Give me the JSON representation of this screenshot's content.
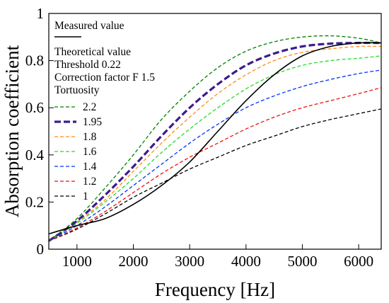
{
  "chart_data": {
    "type": "line",
    "xlabel": "Frequency [Hz]",
    "ylabel": "Absorption coefficient",
    "xlim": [
      500,
      6400
    ],
    "ylim": [
      0,
      1
    ],
    "x_ticks": [
      1000,
      2000,
      3000,
      4000,
      5000,
      6000
    ],
    "y_ticks": [
      0,
      0.2,
      0.4,
      0.6,
      0.8,
      1
    ],
    "y_tick_labels": [
      "0",
      "0.2",
      "0.4",
      "0.6",
      "0.8",
      "1"
    ],
    "grid": false,
    "legend_position": "top-left",
    "legend": {
      "measured_label": "Measured value",
      "theory_lines": [
        "Theoretical value",
        "Threshold 0.22",
        "Correction factor  F 1.5",
        "Tortuosity"
      ]
    },
    "x": [
      500,
      1000,
      1500,
      2000,
      2500,
      3000,
      3500,
      4000,
      4500,
      5000,
      5500,
      6000,
      6400
    ],
    "series": [
      {
        "name": "Measured value",
        "color": "#000000",
        "style": "solid",
        "width": 1.6,
        "values": [
          0.065,
          0.1,
          0.13,
          0.19,
          0.27,
          0.37,
          0.5,
          0.63,
          0.74,
          0.82,
          0.86,
          0.875,
          0.875
        ]
      },
      {
        "name": "2.2",
        "color": "#008000",
        "style": "dashed",
        "width": 1.3,
        "values": [
          0.035,
          0.13,
          0.26,
          0.4,
          0.55,
          0.67,
          0.77,
          0.84,
          0.88,
          0.9,
          0.905,
          0.895,
          0.875
        ]
      },
      {
        "name": "1.95",
        "color": "#3c1c8c",
        "style": "dashed",
        "width": 3.2,
        "values": [
          0.035,
          0.12,
          0.23,
          0.35,
          0.48,
          0.6,
          0.7,
          0.78,
          0.83,
          0.86,
          0.872,
          0.875,
          0.875
        ]
      },
      {
        "name": "1.8",
        "color": "#ff8c1a",
        "style": "dashed",
        "width": 1.3,
        "values": [
          0.035,
          0.115,
          0.21,
          0.33,
          0.45,
          0.56,
          0.66,
          0.74,
          0.8,
          0.835,
          0.85,
          0.86,
          0.86
        ]
      },
      {
        "name": "1.6",
        "color": "#22dd22",
        "style": "dashed",
        "width": 1.3,
        "values": [
          0.035,
          0.11,
          0.2,
          0.3,
          0.41,
          0.51,
          0.6,
          0.68,
          0.74,
          0.78,
          0.8,
          0.81,
          0.82
        ]
      },
      {
        "name": "1.4",
        "color": "#0033ff",
        "style": "dashed",
        "width": 1.3,
        "values": [
          0.035,
          0.1,
          0.18,
          0.27,
          0.36,
          0.45,
          0.53,
          0.6,
          0.65,
          0.69,
          0.72,
          0.745,
          0.76
        ]
      },
      {
        "name": "1.2",
        "color": "#ee1111",
        "style": "dashed",
        "width": 1.3,
        "values": [
          0.035,
          0.09,
          0.16,
          0.24,
          0.32,
          0.39,
          0.45,
          0.51,
          0.56,
          0.6,
          0.63,
          0.66,
          0.685
        ]
      },
      {
        "name": "1",
        "color": "#000000",
        "style": "dashed",
        "width": 1.3,
        "values": [
          0.035,
          0.085,
          0.15,
          0.22,
          0.28,
          0.34,
          0.39,
          0.44,
          0.48,
          0.52,
          0.55,
          0.575,
          0.595
        ]
      }
    ]
  }
}
